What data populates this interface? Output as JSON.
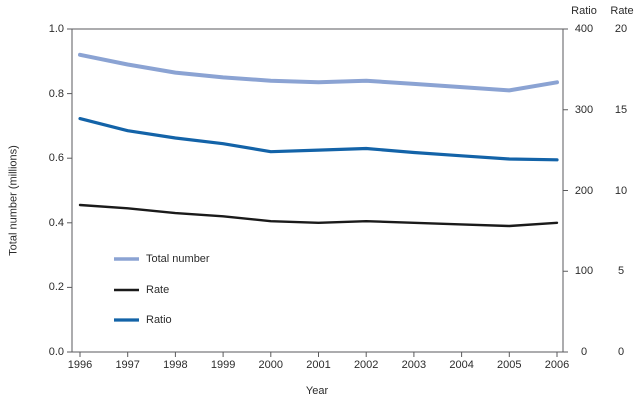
{
  "chart_data": {
    "type": "line",
    "x": [
      1996,
      1997,
      1998,
      1999,
      2000,
      2001,
      2002,
      2003,
      2004,
      2005,
      2006
    ],
    "xlabel": "Year",
    "grid": false,
    "legend_position": "inside-lower-left",
    "axis_color": "#5a5a5c",
    "text_color": "#2b2b2b",
    "axes": {
      "left": {
        "label": "Total number (millions)",
        "min": 0,
        "max": 1.0,
        "tick_labels_top_to_bottom": [
          "1.0",
          "0.8",
          "0.6",
          "0.4",
          "0.2",
          "0.0"
        ]
      },
      "ratio": {
        "header": "Ratio",
        "min": 0,
        "max": 400,
        "tick_labels_top_to_bottom": [
          "400",
          "300",
          "200",
          "100",
          "0"
        ]
      },
      "rate": {
        "header": "Rate",
        "min": 0,
        "max": 20,
        "tick_labels_top_to_bottom": [
          "20",
          "15",
          "10",
          "5",
          "0"
        ]
      }
    },
    "series": [
      {
        "name": "Total number",
        "axis": "left",
        "color": "#8BA3D3",
        "width": 4,
        "values": [
          0.92,
          0.89,
          0.865,
          0.85,
          0.84,
          0.835,
          0.84,
          0.83,
          0.82,
          0.81,
          0.835
        ]
      },
      {
        "name": "Rate",
        "axis": "rate",
        "color": "#1a1a1a",
        "width": 2.4,
        "values": [
          9.1,
          8.9,
          8.6,
          8.4,
          8.1,
          8.0,
          8.1,
          8.0,
          7.9,
          7.8,
          8.0
        ]
      },
      {
        "name": "Ratio",
        "axis": "ratio",
        "color": "#1363A8",
        "width": 3.2,
        "values": [
          289,
          274,
          265,
          258,
          248,
          250,
          252,
          247,
          243,
          239,
          238
        ]
      }
    ]
  }
}
